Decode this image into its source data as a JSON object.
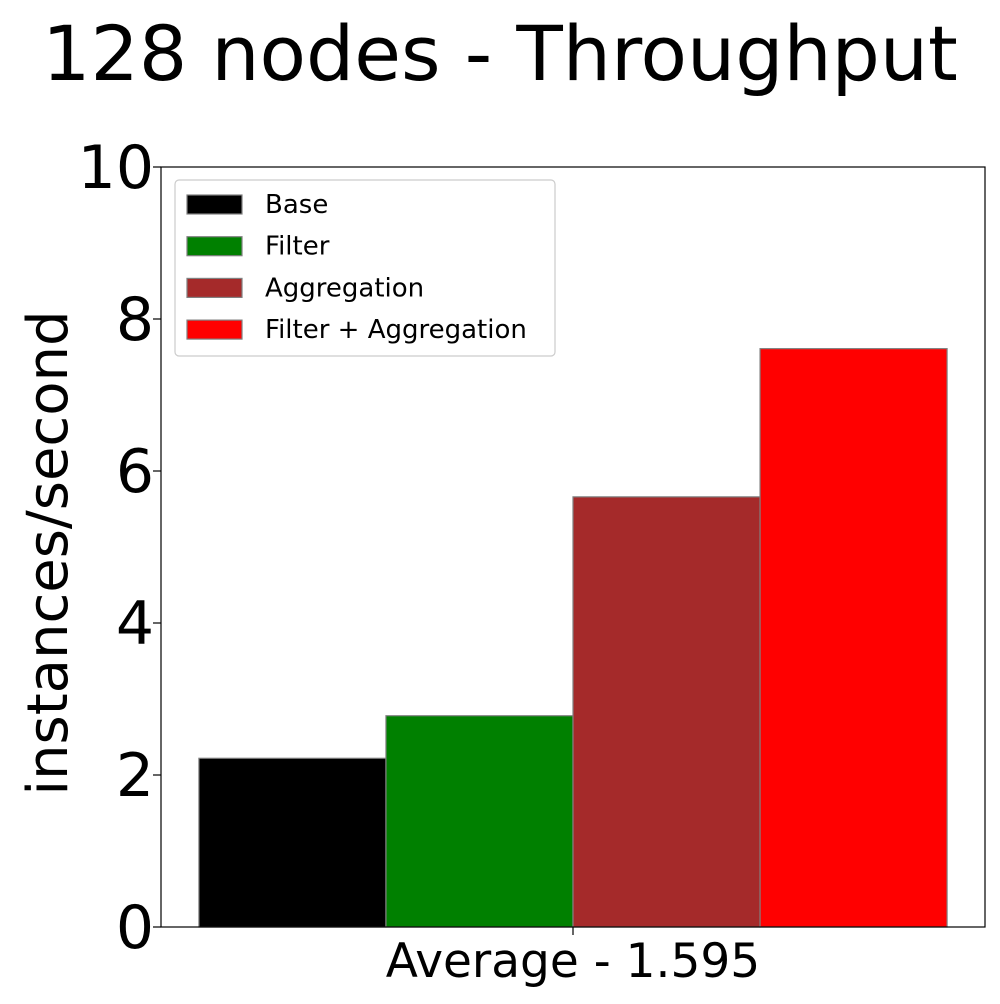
{
  "chart_data": {
    "type": "bar",
    "title": "128 nodes - Throughput",
    "xlabel": "",
    "ylabel": "instances/second",
    "categories": [
      "Average - 1.595"
    ],
    "ylim": [
      0,
      10
    ],
    "yticks": [
      0,
      2,
      4,
      6,
      8,
      10
    ],
    "grid": false,
    "legend_position": "top-left",
    "series": [
      {
        "name": "Base",
        "color": "#000000",
        "values": [
          2.22
        ]
      },
      {
        "name": "Filter",
        "color": "#008000",
        "values": [
          2.78
        ]
      },
      {
        "name": "Aggregation",
        "color": "#a52a2a",
        "values": [
          5.66
        ]
      },
      {
        "name": "Filter + Aggregation",
        "color": "#ff0000",
        "values": [
          7.61
        ]
      }
    ]
  }
}
